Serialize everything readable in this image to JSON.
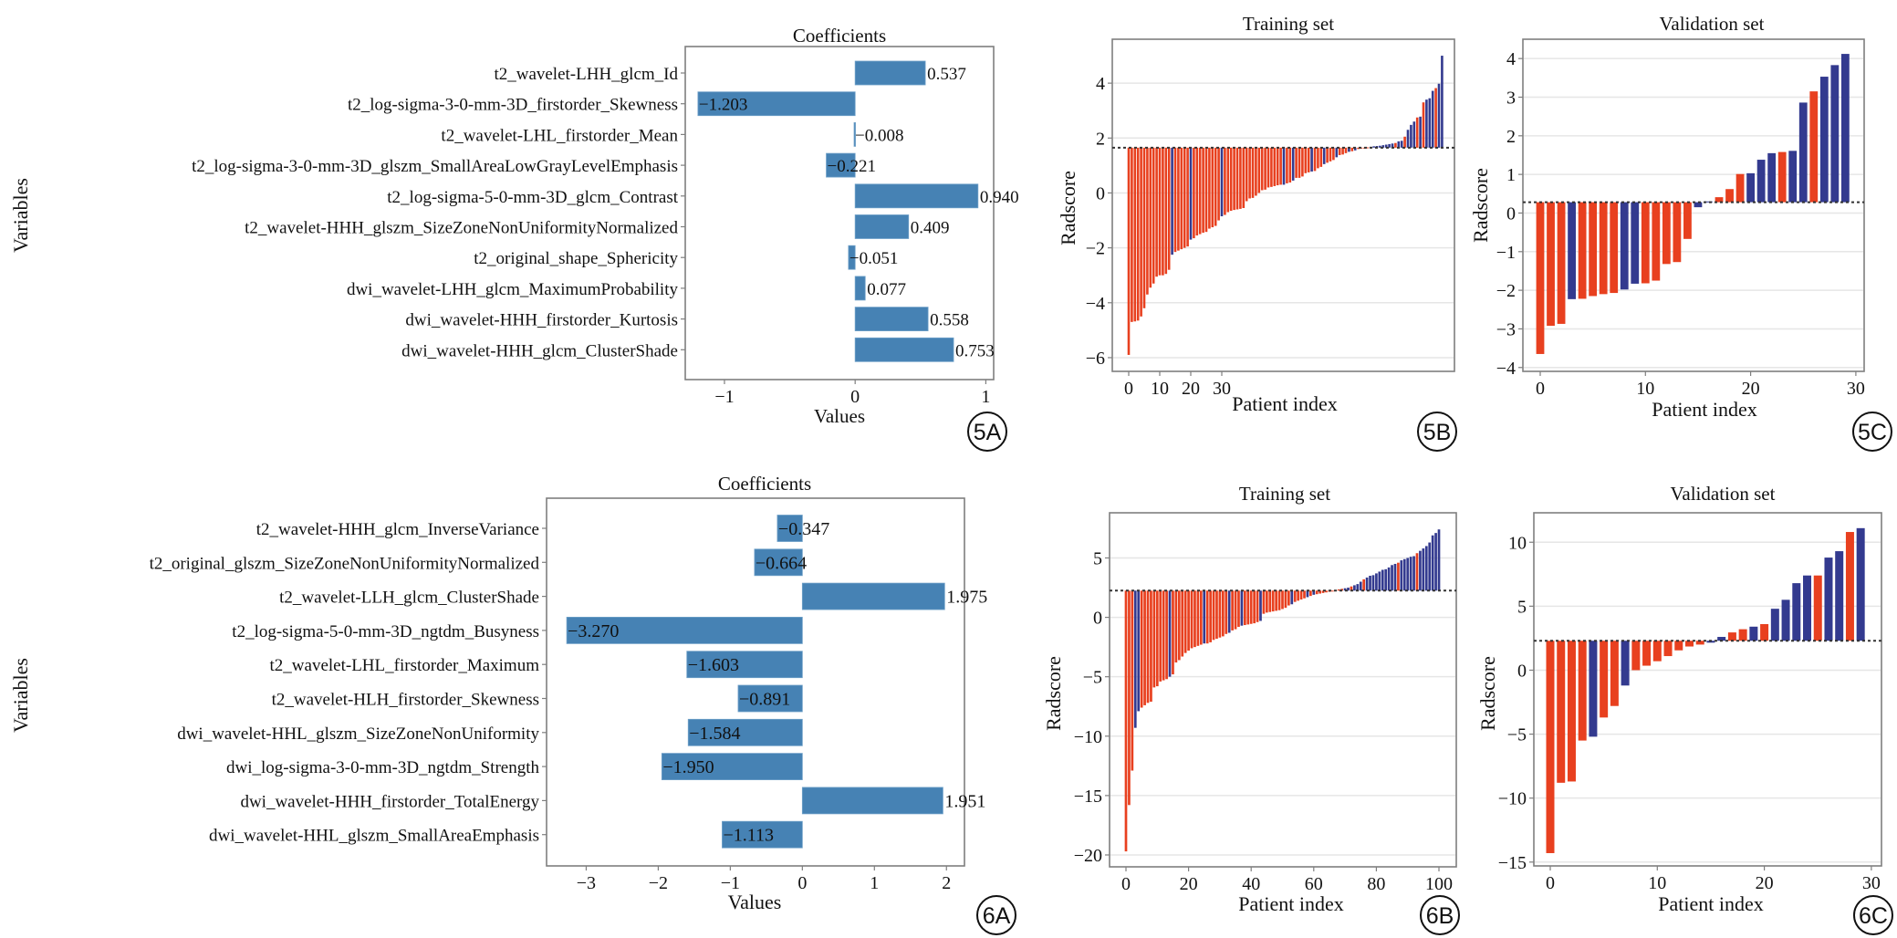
{
  "colors": {
    "coef_bar": "#4682b4",
    "class_red": "#e8401f",
    "class_blue": "#333a8f",
    "grid": "#e6e6e6",
    "frame": "#7f7f7f",
    "threshold": "#333333"
  },
  "chart_data": [
    {
      "id": "5A",
      "panel_label": "5A",
      "type": "bar",
      "orientation": "horizontal",
      "title": "Coefficients",
      "xlabel": "Values",
      "ylabel": "Variables",
      "xlim": [
        -1.3,
        1.06
      ],
      "xticks": [
        -1,
        0,
        1
      ],
      "xtick_labels": [
        "−1",
        "0",
        "1"
      ],
      "categories": [
        "t2_wavelet-LHH_glcm_Id",
        "t2_log-sigma-3-0-mm-3D_firstorder_Skewness",
        "t2_wavelet-LHL_firstorder_Mean",
        "t2_log-sigma-3-0-mm-3D_glszm_SmallAreaLowGrayLevelEmphasis",
        "t2_log-sigma-5-0-mm-3D_glcm_Contrast",
        "t2_wavelet-HHH_glszm_SizeZoneNonUniformityNormalized",
        "t2_original_shape_Sphericity",
        "dwi_wavelet-LHH_glcm_MaximumProbability",
        "dwi_wavelet-HHH_firstorder_Kurtosis",
        "dwi_wavelet-HHH_glcm_ClusterShade"
      ],
      "values": [
        0.537,
        -1.203,
        -0.008,
        -0.221,
        0.94,
        0.409,
        -0.051,
        0.077,
        0.558,
        0.753
      ],
      "value_labels": [
        "0.537",
        "−1.203",
        "−0.008",
        "−0.221",
        "0.940",
        "0.409",
        "−0.051",
        "0.077",
        "0.558",
        "0.753"
      ]
    },
    {
      "id": "5B",
      "panel_label": "5B",
      "type": "bar",
      "title": "Training set",
      "xlabel": "Patient index",
      "ylabel": "Radscore",
      "ylim": [
        -6.5,
        5.6
      ],
      "yticks": [
        -6,
        -4,
        -2,
        0,
        2,
        4
      ],
      "ytick_labels": [
        "−6",
        "−4",
        "−2",
        "0",
        "2",
        "4"
      ],
      "xticks": [
        0,
        10,
        20,
        30
      ],
      "xtick_labels": [
        "0",
        "10",
        "20",
        "30"
      ],
      "threshold": 1.65,
      "grid": true,
      "values": [
        -5.9,
        -4.7,
        -4.68,
        -4.65,
        -4.5,
        -4.2,
        -3.7,
        -3.45,
        -3.3,
        -3.05,
        -3.0,
        -3.0,
        -2.95,
        -2.8,
        -2.25,
        -2.15,
        -2.1,
        -2.05,
        -2.0,
        -1.95,
        -1.7,
        -1.65,
        -1.55,
        -1.5,
        -1.45,
        -1.42,
        -1.3,
        -1.25,
        -1.2,
        -1.0,
        -0.85,
        -0.8,
        -0.7,
        -0.65,
        -0.62,
        -0.6,
        -0.58,
        -0.55,
        -0.3,
        -0.2,
        -0.18,
        -0.1,
        0.0,
        0.1,
        0.12,
        0.2,
        0.22,
        0.25,
        0.28,
        0.3,
        0.3,
        0.35,
        0.38,
        0.45,
        0.55,
        0.55,
        0.6,
        0.72,
        0.75,
        0.78,
        0.8,
        0.9,
        0.95,
        1.05,
        1.1,
        1.15,
        1.2,
        1.3,
        1.38,
        1.4,
        1.45,
        1.5,
        1.52,
        1.55,
        1.6,
        1.62,
        1.64,
        1.66,
        1.68,
        1.7,
        1.71,
        1.72,
        1.74,
        1.76,
        1.78,
        1.8,
        1.82,
        1.88,
        1.9,
        2.05,
        2.3,
        2.48,
        2.6,
        2.75,
        2.78,
        3.3,
        3.4,
        3.45,
        3.72,
        3.82,
        3.98,
        5.0
      ],
      "classes": [
        "R",
        "R",
        "R",
        "R",
        "R",
        "R",
        "R",
        "R",
        "R",
        "R",
        "R",
        "R",
        "R",
        "R",
        "B",
        "R",
        "R",
        "R",
        "R",
        "R",
        "B",
        "R",
        "R",
        "R",
        "R",
        "R",
        "R",
        "R",
        "R",
        "R",
        "B",
        "R",
        "R",
        "R",
        "R",
        "R",
        "R",
        "R",
        "R",
        "R",
        "R",
        "R",
        "R",
        "R",
        "R",
        "R",
        "R",
        "R",
        "R",
        "R",
        "B",
        "R",
        "R",
        "B",
        "R",
        "R",
        "R",
        "R",
        "R",
        "B",
        "R",
        "R",
        "R",
        "B",
        "R",
        "R",
        "R",
        "B",
        "R",
        "R",
        "R",
        "B",
        "R",
        "B",
        "R",
        "R",
        "R",
        "R",
        "B",
        "B",
        "B",
        "B",
        "B",
        "B",
        "B",
        "B",
        "R",
        "B",
        "B",
        "R",
        "B",
        "B",
        "B",
        "R",
        "B",
        "R",
        "B",
        "B",
        "B",
        "R",
        "B",
        "B"
      ],
      "legend": "none"
    },
    {
      "id": "5C",
      "panel_label": "5C",
      "type": "bar",
      "title": "Validation set",
      "xlabel": "Patient index",
      "ylabel": "Radscore",
      "ylim": [
        -4.1,
        4.5
      ],
      "yticks": [
        -4,
        -3,
        -2,
        -1,
        0,
        1,
        2,
        3,
        4
      ],
      "ytick_labels": [
        "−4",
        "−3",
        "−2",
        "−1",
        "0",
        "1",
        "2",
        "3",
        "4"
      ],
      "xticks": [
        0,
        10,
        20,
        30
      ],
      "xtick_labels": [
        "0",
        "10",
        "20",
        "30"
      ],
      "threshold": 0.28,
      "grid": true,
      "values": [
        -3.65,
        -2.92,
        -2.87,
        -2.23,
        -2.22,
        -2.15,
        -2.1,
        -2.07,
        -1.98,
        -1.83,
        -1.82,
        -1.75,
        -1.32,
        -1.27,
        -0.67,
        0.15,
        0.3,
        0.41,
        0.62,
        1.01,
        1.03,
        1.38,
        1.55,
        1.58,
        1.61,
        2.86,
        3.15,
        3.53,
        3.83,
        4.12
      ],
      "classes": [
        "R",
        "R",
        "R",
        "B",
        "R",
        "R",
        "R",
        "R",
        "B",
        "B",
        "R",
        "R",
        "R",
        "R",
        "R",
        "B",
        "B",
        "R",
        "R",
        "R",
        "B",
        "B",
        "B",
        "R",
        "B",
        "B",
        "R",
        "B",
        "B",
        "B"
      ],
      "legend": "none"
    },
    {
      "id": "6A",
      "panel_label": "6A",
      "type": "bar",
      "orientation": "horizontal",
      "title": "Coefficients",
      "xlabel": "Values",
      "ylabel": "Variables",
      "xlim": [
        -3.55,
        2.25
      ],
      "xticks": [
        -3,
        -2,
        -1,
        0,
        1,
        2
      ],
      "xtick_labels": [
        "−3",
        "−2",
        "−1",
        "0",
        "1",
        "2"
      ],
      "categories": [
        "t2_wavelet-HHH_glcm_InverseVariance",
        "t2_original_glszm_SizeZoneNonUniformityNormalized",
        "t2_wavelet-LLH_glcm_ClusterShade",
        "t2_log-sigma-5-0-mm-3D_ngtdm_Busyness",
        "t2_wavelet-LHL_firstorder_Maximum",
        "t2_wavelet-HLH_firstorder_Skewness",
        "dwi_wavelet-HHL_glszm_SizeZoneNonUniformity",
        "dwi_log-sigma-3-0-mm-3D_ngtdm_Strength",
        "dwi_wavelet-HHH_firstorder_TotalEnergy",
        "dwi_wavelet-HHL_glszm_SmallAreaEmphasis"
      ],
      "values": [
        -0.347,
        -0.664,
        1.975,
        -3.27,
        -1.603,
        -0.891,
        -1.584,
        -1.95,
        1.951,
        -1.113
      ],
      "value_labels": [
        "−0.347",
        "−0.664",
        "1.975",
        "−3.270",
        "−1.603",
        "−0.891",
        "−1.584",
        "−1.950",
        "1.951",
        "−1.113"
      ]
    },
    {
      "id": "6B",
      "panel_label": "6B",
      "type": "bar",
      "title": "Training set",
      "xlabel": "Patient index",
      "ylabel": "Radscore",
      "ylim": [
        -21,
        8.8
      ],
      "yticks": [
        -20,
        -15,
        -10,
        -5,
        0,
        5
      ],
      "ytick_labels": [
        "−20",
        "−15",
        "−10",
        "−5",
        "0",
        "5"
      ],
      "xticks": [
        0,
        20,
        40,
        60,
        80,
        100
      ],
      "xtick_labels": [
        "0",
        "20",
        "40",
        "60",
        "80",
        "100"
      ],
      "threshold": 2.25,
      "grid": true,
      "values": [
        -19.7,
        -15.8,
        -12.9,
        -9.3,
        -7.9,
        -7.6,
        -7.4,
        -7.2,
        -7.1,
        -5.9,
        -5.8,
        -5.4,
        -5.3,
        -5.2,
        -5.0,
        -4.8,
        -3.8,
        -3.6,
        -3.3,
        -3.0,
        -2.8,
        -2.6,
        -2.5,
        -2.4,
        -2.3,
        -2.2,
        -2.2,
        -2.1,
        -1.9,
        -1.8,
        -1.7,
        -1.6,
        -1.4,
        -1.3,
        -1.1,
        -1.0,
        -0.8,
        -0.7,
        -0.65,
        -0.6,
        -0.55,
        -0.5,
        -0.4,
        -0.3,
        0.3,
        0.4,
        0.45,
        0.5,
        0.55,
        0.6,
        0.7,
        0.8,
        1.0,
        1.1,
        1.3,
        1.4,
        1.5,
        1.6,
        1.7,
        1.8,
        1.9,
        1.95,
        2.0,
        2.05,
        2.1,
        2.15,
        2.2,
        2.3,
        2.35,
        2.4,
        2.45,
        2.5,
        2.6,
        2.7,
        2.8,
        3.0,
        3.2,
        3.35,
        3.5,
        3.55,
        3.7,
        3.85,
        4.0,
        4.05,
        4.2,
        4.4,
        4.5,
        4.6,
        4.8,
        4.9,
        5.0,
        5.1,
        5.15,
        5.4,
        5.6,
        5.8,
        6.0,
        6.3,
        6.9,
        7.1,
        7.4
      ],
      "classes": [
        "R",
        "R",
        "R",
        "B",
        "B",
        "R",
        "R",
        "R",
        "R",
        "R",
        "R",
        "R",
        "R",
        "R",
        "B",
        "R",
        "R",
        "R",
        "R",
        "R",
        "R",
        "R",
        "R",
        "R",
        "R",
        "B",
        "R",
        "R",
        "R",
        "R",
        "R",
        "R",
        "R",
        "B",
        "R",
        "R",
        "R",
        "B",
        "R",
        "R",
        "R",
        "R",
        "R",
        "B",
        "R",
        "R",
        "R",
        "R",
        "R",
        "R",
        "R",
        "R",
        "R",
        "B",
        "R",
        "R",
        "R",
        "R",
        "B",
        "R",
        "B",
        "R",
        "R",
        "R",
        "R",
        "R",
        "R",
        "R",
        "R",
        "R",
        "B",
        "B",
        "R",
        "B",
        "B",
        "B",
        "R",
        "B",
        "B",
        "B",
        "B",
        "B",
        "B",
        "B",
        "B",
        "B",
        "B",
        "R",
        "B",
        "B",
        "B",
        "B",
        "B",
        "R",
        "B",
        "B",
        "B",
        "B",
        "B",
        "B",
        "B"
      ],
      "legend": "none"
    },
    {
      "id": "6C",
      "panel_label": "6C",
      "type": "bar",
      "title": "Validation set",
      "xlabel": "Patient index",
      "ylabel": "Radscore",
      "ylim": [
        -15.3,
        12.3
      ],
      "yticks": [
        -15,
        -10,
        -5,
        0,
        5,
        10
      ],
      "ytick_labels": [
        "−15",
        "−10",
        "−5",
        "0",
        "5",
        "10"
      ],
      "xticks": [
        0,
        10,
        20,
        30
      ],
      "xtick_labels": [
        "0",
        "10",
        "20",
        "30"
      ],
      "threshold": 2.3,
      "grid": true,
      "values": [
        -14.3,
        -8.8,
        -8.7,
        -5.5,
        -5.2,
        -3.7,
        -2.8,
        -1.2,
        0.0,
        0.35,
        0.7,
        1.1,
        1.55,
        1.85,
        2.0,
        2.15,
        2.6,
        2.95,
        3.2,
        3.4,
        3.6,
        4.8,
        5.5,
        6.8,
        7.4,
        7.4,
        8.8,
        9.3,
        10.8,
        11.1
      ],
      "classes": [
        "R",
        "R",
        "R",
        "R",
        "B",
        "R",
        "R",
        "B",
        "R",
        "R",
        "R",
        "R",
        "R",
        "R",
        "R",
        "B",
        "B",
        "R",
        "R",
        "B",
        "R",
        "B",
        "B",
        "B",
        "B",
        "R",
        "B",
        "B",
        "R",
        "B"
      ],
      "legend": "none"
    }
  ]
}
